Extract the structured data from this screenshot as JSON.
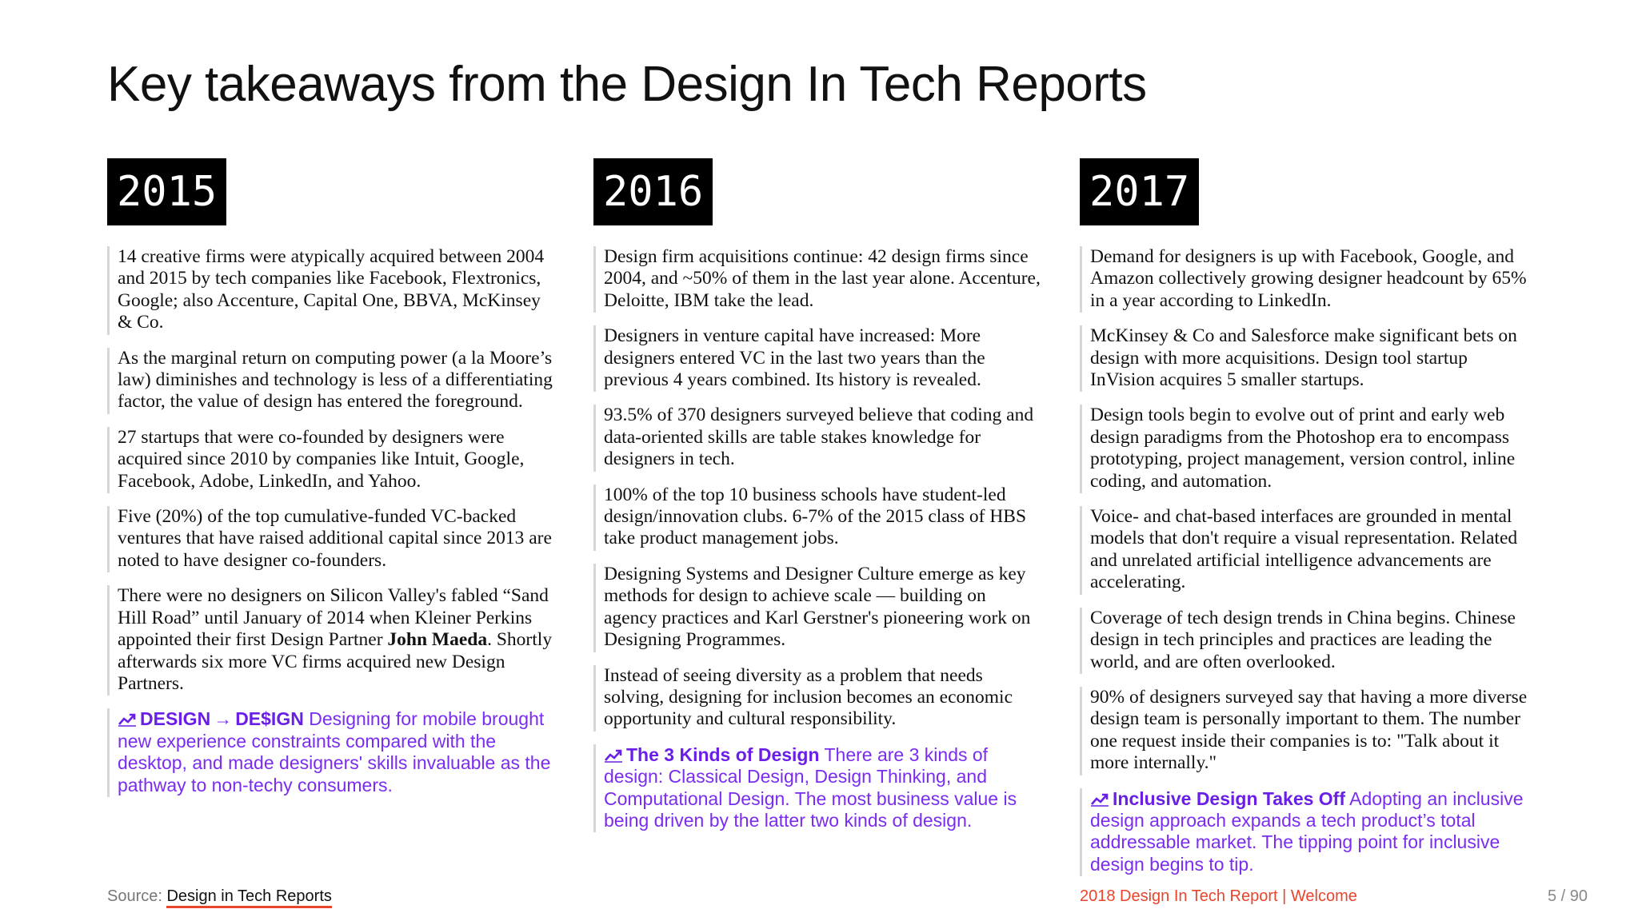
{
  "title": "Key takeaways from the Design In Tech Reports",
  "columns": [
    {
      "year": "2015",
      "items": [
        {
          "text": "14 creative firms were atypically acquired between 2004 and 2015 by tech companies like Facebook, Flextronics, Google; also Accenture, Capital One, BBVA, McKinsey & Co."
        },
        {
          "text": "As the marginal return on computing power (a la Moore’s law) diminishes and technology is less of a differentiating factor, the value of design has entered the foreground."
        },
        {
          "text": "27 startups that were co-founded by designers were acquired since 2010 by companies like Intuit, Google, Facebook, Adobe, LinkedIn, and Yahoo."
        },
        {
          "text": "Five (20%) of the top cumulative-funded VC-backed ventures that have raised additional capital since 2013 are noted to have designer co-founders."
        },
        {
          "text_before": "There were no designers on Silicon Valley's fabled “Sand Hill Road” until January of 2014 when Kleiner Perkins appointed their first Design Partner ",
          "bold": "John Maeda",
          "text_after": ". Shortly afterwards six more VC firms acquired new Design Partners."
        }
      ],
      "highlight": {
        "icon": "trending-up-icon",
        "title_part1": "DESIGN",
        "arrow": "→",
        "title_part2": "DE$IGN",
        "text": " Designing for mobile brought new experience constraints compared with the desktop, and made designers' skills invaluable as the pathway to non-techy consumers."
      }
    },
    {
      "year": "2016",
      "items": [
        {
          "text": "Design firm acquisitions continue: 42 design firms since 2004, and ~50% of them in the last year alone. Accenture, Deloitte, IBM take the lead."
        },
        {
          "text": "Designers in venture capital have increased: More designers entered VC in the last two years than the previous 4 years combined. Its history is revealed."
        },
        {
          "text": "93.5% of 370 designers surveyed believe that coding and data-oriented skills are table stakes knowledge for designers in tech."
        },
        {
          "text": "100% of the top 10 business schools have student-led design/innovation clubs. 6-7% of the 2015 class of HBS take product management jobs."
        },
        {
          "text": "Designing Systems and Designer Culture emerge as key methods for design to achieve scale — building on agency practices and Karl Gerstner's pioneering work on Designing Programmes."
        },
        {
          "text": "Instead of seeing diversity as a problem that needs solving, designing for inclusion becomes an economic opportunity and cultural responsibility."
        }
      ],
      "highlight": {
        "icon": "trending-up-icon",
        "title": "The 3 Kinds of Design",
        "text": " There are 3 kinds of design: Classical Design, Design Thinking, and Computational Design. The most business value is being driven by the latter two kinds of design."
      }
    },
    {
      "year": "2017",
      "items": [
        {
          "text": "Demand for designers is up with Facebook, Google, and Amazon collectively growing designer headcount by 65% in a year according to LinkedIn."
        },
        {
          "text": "McKinsey & Co and Salesforce make significant bets on design with more acquisitions. Design tool startup InVision acquires 5 smaller startups."
        },
        {
          "text": "Design tools begin to evolve out of print and early web design paradigms from the Photoshop era to encompass prototyping, project management, version control, inline coding, and automation."
        },
        {
          "text": "Voice- and chat-based interfaces are grounded in mental models that don't require a visual representation. Related and unrelated artificial intelligence advancements are accelerating."
        },
        {
          "text": "Coverage of tech design trends in China begins. Chinese design in tech principles and practices are leading the world, and are often overlooked."
        },
        {
          "text": "90% of designers surveyed say that having a more diverse design team is personally important to them. The number one request inside their companies is to: \"Talk about it more internally.\""
        }
      ],
      "highlight": {
        "icon": "trending-up-icon",
        "title": "Inclusive Design Takes Off",
        "text": " Adopting an inclusive design approach expands a tech product’s total addressable market. The tipping point for inclusive design begins to tip."
      }
    }
  ],
  "footer": {
    "source_label": "Source: ",
    "source_link": "Design in Tech Reports",
    "report_label": "2018 Design In Tech Report | Welcome",
    "page_number": "5 / 90"
  },
  "colors": {
    "highlight": "#7a2cf0",
    "accent": "#e8452c",
    "badge_bg": "#000000"
  }
}
